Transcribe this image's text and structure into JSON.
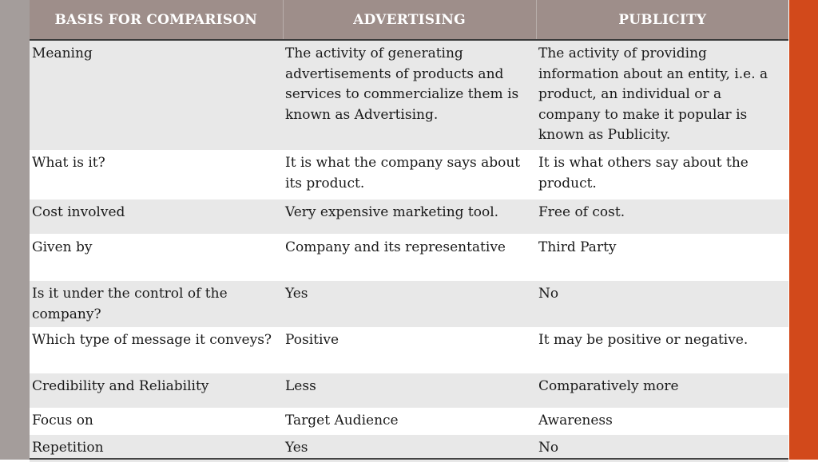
{
  "table": {
    "headers": [
      "BASIS FOR COMPARISON",
      "ADVERTISING",
      "PUBLICITY"
    ],
    "rows": [
      [
        "Meaning",
        "The activity of generating advertisements of products and services to commercialize them is known as Advertising.",
        "The activity of providing information about an entity, i.e. a product, an individual or a company to make it popular is known as Publicity."
      ],
      [
        "What is it?",
        "It is what the company says about its product.",
        "It is what others say about the product."
      ],
      [
        "Cost involved",
        "Very expensive marketing tool.",
        "Free of cost."
      ],
      [
        "Given by",
        "Company and its representative",
        "Third Party"
      ],
      [
        "Is it under the control of the company?",
        "Yes",
        "No"
      ],
      [
        "Which type of message it conveys?",
        "Positive",
        "It may be positive or negative."
      ],
      [
        "Credibility and Reliability",
        "Less",
        "Comparatively more"
      ],
      [
        "Focus on",
        "Target Audience",
        "Awareness"
      ],
      [
        "Repetition",
        "Yes",
        "No"
      ]
    ]
  },
  "colors": {
    "header_bg": "#9e8e8a",
    "left_bar": "#a49d9b",
    "right_bar": "#d2491b",
    "row_alt": "#e8e8e8"
  }
}
